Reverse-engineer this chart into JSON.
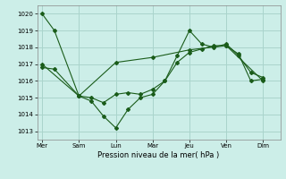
{
  "background_color": "#cceee8",
  "grid_color": "#aad4cc",
  "line_color": "#1a5c1a",
  "marker_color": "#1a5c1a",
  "xlabel": "Pression niveau de la mer( hPa )",
  "ylim": [
    1012.5,
    1020.5
  ],
  "yticks": [
    1013,
    1014,
    1015,
    1016,
    1017,
    1018,
    1019,
    1020
  ],
  "x_tick_labels": [
    "Mer",
    "Sam",
    "Lun",
    "Mar",
    "Jeu",
    "Ven",
    "Dim"
  ],
  "x_tick_positions": [
    0,
    1.5,
    3,
    4.5,
    6,
    7.5,
    9
  ],
  "xlim": [
    -0.2,
    9.7
  ],
  "series": [
    {
      "x": [
        0,
        0.5,
        1.5,
        2.0,
        2.5,
        3.0,
        3.5,
        4.0,
        4.5,
        5.0,
        5.5,
        6.0,
        6.5,
        7.0,
        7.5,
        8.0,
        8.5,
        9.0
      ],
      "y": [
        1020.0,
        1019.0,
        1015.1,
        1014.8,
        1013.9,
        1013.2,
        1014.3,
        1015.0,
        1015.2,
        1016.0,
        1017.5,
        1019.0,
        1018.2,
        1018.0,
        1018.2,
        1017.5,
        1016.5,
        1016.2
      ]
    },
    {
      "x": [
        0,
        0.5,
        1.5,
        2.0,
        2.5,
        3.0,
        3.5,
        4.0,
        4.5,
        5.0,
        5.5,
        6.0,
        6.5,
        7.0,
        7.5,
        8.0,
        8.5,
        9.0
      ],
      "y": [
        1016.8,
        1016.7,
        1015.1,
        1015.0,
        1014.7,
        1015.2,
        1015.3,
        1015.2,
        1015.5,
        1016.0,
        1017.1,
        1017.7,
        1017.9,
        1018.1,
        1018.1,
        1017.6,
        1016.0,
        1016.1
      ]
    },
    {
      "x": [
        0,
        1.5,
        3.0,
        4.5,
        6.0,
        7.5,
        9.0
      ],
      "y": [
        1017.0,
        1015.1,
        1017.1,
        1017.4,
        1017.85,
        1018.1,
        1016.0
      ]
    }
  ]
}
